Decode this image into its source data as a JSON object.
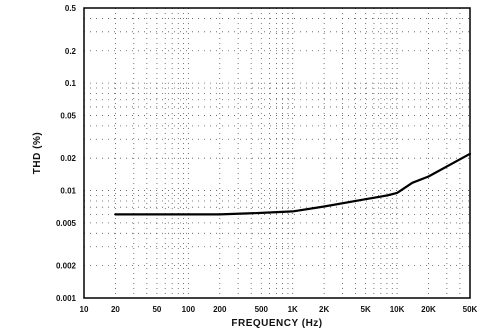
{
  "chart_data": {
    "type": "line",
    "xlabel": "FREQUENCY (Hz)",
    "ylabel": "THD (%)",
    "x_scale": "log",
    "y_scale": "log",
    "xlim": [
      10,
      50000
    ],
    "ylim": [
      0.001,
      0.5
    ],
    "x_ticks": [
      {
        "value": 10,
        "label": "10"
      },
      {
        "value": 20,
        "label": "20"
      },
      {
        "value": 50,
        "label": "50"
      },
      {
        "value": 100,
        "label": "100"
      },
      {
        "value": 200,
        "label": "200"
      },
      {
        "value": 500,
        "label": "500"
      },
      {
        "value": 1000,
        "label": "1K"
      },
      {
        "value": 2000,
        "label": "2K"
      },
      {
        "value": 5000,
        "label": "5K"
      },
      {
        "value": 10000,
        "label": "10K"
      },
      {
        "value": 20000,
        "label": "20K"
      },
      {
        "value": 50000,
        "label": "50K"
      }
    ],
    "y_ticks": [
      {
        "value": 0.001,
        "label": "0.001"
      },
      {
        "value": 0.002,
        "label": "0.002"
      },
      {
        "value": 0.005,
        "label": "0.005"
      },
      {
        "value": 0.01,
        "label": "0.01"
      },
      {
        "value": 0.02,
        "label": "0.02"
      },
      {
        "value": 0.05,
        "label": "0.05"
      },
      {
        "value": 0.1,
        "label": "0.1"
      },
      {
        "value": 0.2,
        "label": "0.2"
      },
      {
        "value": 0.5,
        "label": "0.5"
      }
    ],
    "grid": "dotted",
    "series": [
      {
        "color": "#000000",
        "x": [
          20,
          50,
          100,
          200,
          500,
          1000,
          2000,
          5000,
          8000,
          10000,
          14000,
          20000,
          50000
        ],
        "y": [
          0.006,
          0.006,
          0.006,
          0.006,
          0.0062,
          0.0064,
          0.0071,
          0.0083,
          0.009,
          0.0095,
          0.0118,
          0.0135,
          0.022
        ]
      }
    ]
  }
}
